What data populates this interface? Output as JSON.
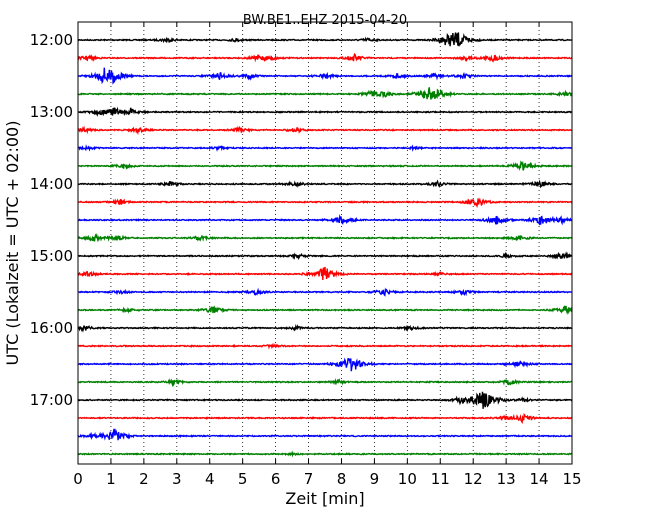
{
  "chart_data": {
    "type": "line",
    "title": "BW.BE1..EHZ 2015-04-20",
    "xlabel": "Zeit  [min]",
    "ylabel": "UTC (Lokalzeit = UTC + 02:00)",
    "xlim": [
      0,
      15
    ],
    "x_ticks": [
      0,
      1,
      2,
      3,
      4,
      5,
      6,
      7,
      8,
      9,
      10,
      11,
      12,
      13,
      14,
      15
    ],
    "y_tick_labels": [
      "12:00",
      "13:00",
      "14:00",
      "15:00",
      "16:00",
      "17:00"
    ],
    "grid": "vertical dotted",
    "trace_colors": [
      "#000000",
      "#ff0000",
      "#0000ff",
      "#008000"
    ],
    "traces": [
      {
        "start": "12:00",
        "events": [
          {
            "t": 2.7,
            "amp": 0.25
          },
          {
            "t": 4.8,
            "amp": 0.2
          },
          {
            "t": 8.8,
            "amp": 0.2
          },
          {
            "t": 11.5,
            "amp": 1.0
          },
          {
            "t": 11.2,
            "amp": 0.4
          }
        ]
      },
      {
        "start": "12:15",
        "events": [
          {
            "t": 0.3,
            "amp": 0.3
          },
          {
            "t": 5.5,
            "amp": 0.4
          },
          {
            "t": 5.9,
            "amp": 0.25
          },
          {
            "t": 8.4,
            "amp": 0.4
          },
          {
            "t": 11.8,
            "amp": 0.3
          },
          {
            "t": 12.6,
            "amp": 0.4
          }
        ]
      },
      {
        "start": "12:30",
        "events": [
          {
            "t": 0.8,
            "amp": 0.8
          },
          {
            "t": 1.1,
            "amp": 0.6
          },
          {
            "t": 4.3,
            "amp": 0.4
          },
          {
            "t": 5.2,
            "amp": 0.3
          },
          {
            "t": 7.5,
            "amp": 0.3
          },
          {
            "t": 9.7,
            "amp": 0.3
          },
          {
            "t": 10.8,
            "amp": 0.3
          },
          {
            "t": 11.7,
            "amp": 0.3
          }
        ]
      },
      {
        "start": "12:45",
        "events": [
          {
            "t": 8.9,
            "amp": 0.3
          },
          {
            "t": 9.3,
            "amp": 0.3
          },
          {
            "t": 10.7,
            "amp": 1.0
          },
          {
            "t": 14.8,
            "amp": 0.3
          }
        ]
      },
      {
        "start": "13:00",
        "events": [
          {
            "t": 0.6,
            "amp": 0.3
          },
          {
            "t": 1.1,
            "amp": 0.5
          },
          {
            "t": 1.6,
            "amp": 0.4
          }
        ]
      },
      {
        "start": "13:15",
        "events": [
          {
            "t": 0.2,
            "amp": 0.2
          },
          {
            "t": 1.8,
            "amp": 0.3
          },
          {
            "t": 4.9,
            "amp": 0.3
          },
          {
            "t": 6.6,
            "amp": 0.3
          }
        ]
      },
      {
        "start": "13:30",
        "events": [
          {
            "t": 0.3,
            "amp": 0.2
          },
          {
            "t": 4.3,
            "amp": 0.2
          },
          {
            "t": 10.2,
            "amp": 0.15
          }
        ]
      },
      {
        "start": "13:45",
        "events": [
          {
            "t": 1.4,
            "amp": 0.3
          },
          {
            "t": 13.5,
            "amp": 0.6
          }
        ]
      },
      {
        "start": "14:00",
        "events": [
          {
            "t": 2.8,
            "amp": 0.3
          },
          {
            "t": 6.6,
            "amp": 0.3
          },
          {
            "t": 10.9,
            "amp": 0.3
          },
          {
            "t": 14.0,
            "amp": 0.4
          }
        ]
      },
      {
        "start": "14:15",
        "events": [
          {
            "t": 1.3,
            "amp": 0.3
          },
          {
            "t": 12.1,
            "amp": 0.6
          }
        ]
      },
      {
        "start": "14:30",
        "events": [
          {
            "t": 8.0,
            "amp": 0.6
          },
          {
            "t": 12.7,
            "amp": 0.5
          },
          {
            "t": 14.1,
            "amp": 0.6
          },
          {
            "t": 14.7,
            "amp": 0.3
          }
        ]
      },
      {
        "start": "14:45",
        "events": [
          {
            "t": 0.5,
            "amp": 0.4
          },
          {
            "t": 1.2,
            "amp": 0.3
          },
          {
            "t": 3.7,
            "amp": 0.3
          },
          {
            "t": 13.4,
            "amp": 0.3
          }
        ]
      },
      {
        "start": "15:00",
        "events": [
          {
            "t": 6.7,
            "amp": 0.25
          },
          {
            "t": 13.0,
            "amp": 0.2
          },
          {
            "t": 14.7,
            "amp": 0.4
          }
        ]
      },
      {
        "start": "15:15",
        "events": [
          {
            "t": 0.3,
            "amp": 0.3
          },
          {
            "t": 7.5,
            "amp": 0.9
          },
          {
            "t": 11.0,
            "amp": 0.15
          }
        ]
      },
      {
        "start": "15:30",
        "events": [
          {
            "t": 1.3,
            "amp": 0.2
          },
          {
            "t": 5.4,
            "amp": 0.3
          },
          {
            "t": 9.3,
            "amp": 0.4
          },
          {
            "t": 11.7,
            "amp": 0.3
          }
        ]
      },
      {
        "start": "15:45",
        "events": [
          {
            "t": 1.5,
            "amp": 0.2
          },
          {
            "t": 4.1,
            "amp": 0.4
          },
          {
            "t": 14.8,
            "amp": 0.5
          }
        ]
      },
      {
        "start": "16:00",
        "events": [
          {
            "t": 0.2,
            "amp": 0.3
          },
          {
            "t": 6.6,
            "amp": 0.2
          },
          {
            "t": 10.1,
            "amp": 0.2
          }
        ]
      },
      {
        "start": "16:15",
        "events": [
          {
            "t": 5.9,
            "amp": 0.2
          }
        ]
      },
      {
        "start": "16:30",
        "events": [
          {
            "t": 8.3,
            "amp": 1.0
          },
          {
            "t": 13.4,
            "amp": 0.4
          }
        ]
      },
      {
        "start": "16:45",
        "events": [
          {
            "t": 2.9,
            "amp": 0.3
          },
          {
            "t": 7.9,
            "amp": 0.2
          },
          {
            "t": 13.1,
            "amp": 0.3
          }
        ]
      },
      {
        "start": "17:00",
        "events": [
          {
            "t": 11.6,
            "amp": 0.3
          },
          {
            "t": 12.3,
            "amp": 1.2
          },
          {
            "t": 13.5,
            "amp": 0.2
          }
        ]
      },
      {
        "start": "17:15",
        "events": [
          {
            "t": 12.9,
            "amp": 0.2
          },
          {
            "t": 13.5,
            "amp": 0.5
          }
        ]
      },
      {
        "start": "17:30",
        "events": [
          {
            "t": 0.4,
            "amp": 0.2
          },
          {
            "t": 1.1,
            "amp": 0.8
          }
        ]
      },
      {
        "start": "17:45",
        "events": [
          {
            "t": 6.5,
            "amp": 0.1
          }
        ]
      }
    ]
  }
}
